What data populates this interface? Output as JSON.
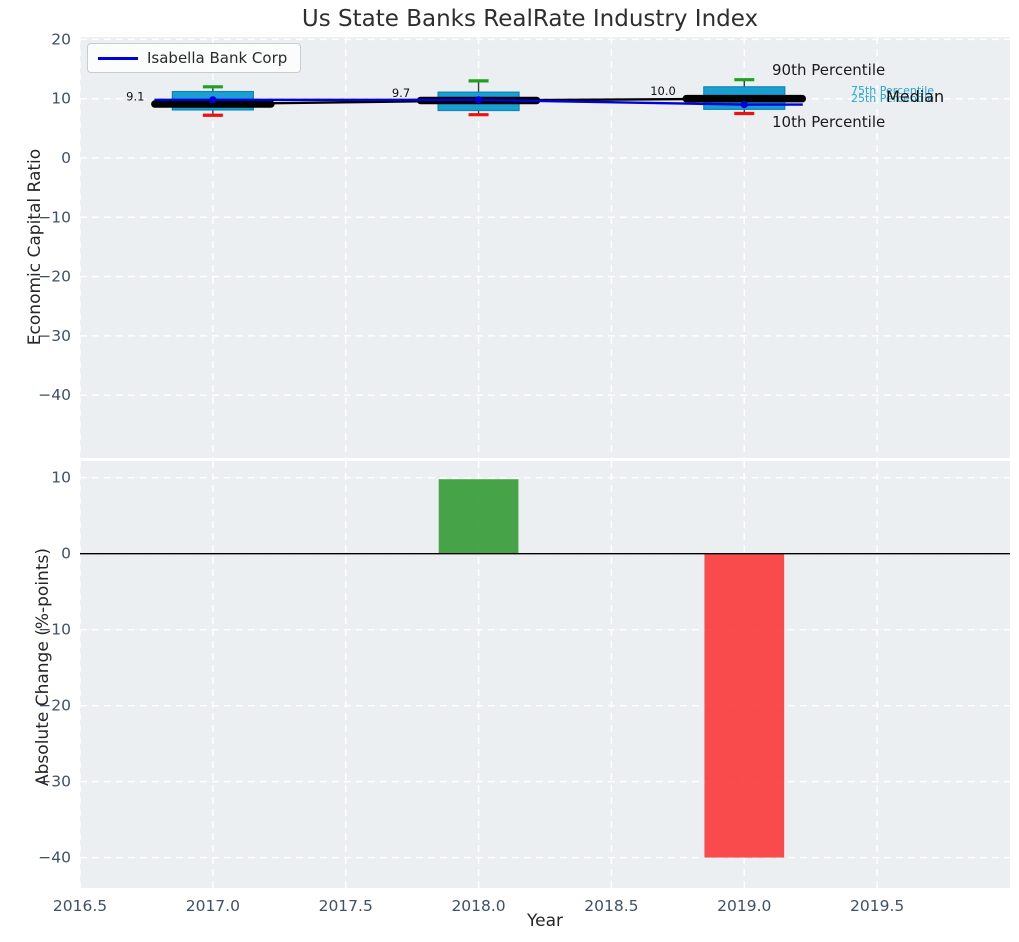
{
  "title": "Us State Banks RealRate Industry Index",
  "legend": {
    "label": "Isabella Bank Corp",
    "line_color": "#0000dd"
  },
  "annotations": {
    "p90": "90th Percentile",
    "p75": "75th Percentile",
    "median": "Median",
    "p25": "25th Percentile",
    "p10": "10th Percentile"
  },
  "colors": {
    "axes_background": "#ECEFF1",
    "grid": "#FFFFFF",
    "box_fill": "#1A9FD4",
    "box_edge": "#0D87B2",
    "whisker": "#3A3A3A",
    "cap_top": "#1FA01F",
    "cap_bottom": "#EE1111",
    "median_line": "#000000",
    "company_line": "#0000DD",
    "tick_label": "#3F5166",
    "zero_line": "#000000",
    "value_label": "#111111"
  },
  "chart_data": [
    {
      "type": "boxplot+line",
      "panel": "top",
      "ylabel": "Economic Capital Ratio",
      "xlim": [
        2016.5,
        2020.0
      ],
      "ylim": [
        -50.6,
        20.4
      ],
      "xticks": [
        2016.5,
        2017.0,
        2017.5,
        2018.0,
        2018.5,
        2019.0,
        2019.5
      ],
      "yticks": [
        20,
        10,
        0,
        -10,
        -20,
        -30,
        -40
      ],
      "ytick_labels": [
        "20",
        "10",
        "0",
        "−10",
        "−20",
        "−30",
        "−40"
      ],
      "grid": true,
      "legend_position": "upper left",
      "boxes": [
        {
          "x": 2017,
          "p10": 7.2,
          "q1": 8.1,
          "median": 9.1,
          "q3": 11.2,
          "p90": 12.0
        },
        {
          "x": 2018,
          "p10": 7.3,
          "q1": 8.0,
          "median": 9.7,
          "q3": 11.1,
          "p90": 13.0
        },
        {
          "x": 2019,
          "p10": 7.5,
          "q1": 8.2,
          "median": 10.0,
          "q3": 12.0,
          "p90": 13.2
        }
      ],
      "median_labels": [
        "9.1",
        "9.7",
        "10.0"
      ],
      "company_series": {
        "name": "Isabella Bank Corp",
        "x": [
          2017,
          2018,
          2019
        ],
        "y": [
          9.8,
          9.8,
          9.0
        ]
      }
    },
    {
      "type": "bar",
      "panel": "bottom",
      "ylabel": "Absolute Change (%-points)",
      "xlabel": "Year",
      "xlim": [
        2016.5,
        2020.0
      ],
      "ylim": [
        -44.0,
        12.2
      ],
      "xticks": [
        2016.5,
        2017.0,
        2017.5,
        2018.0,
        2018.5,
        2019.0,
        2019.5
      ],
      "xtick_labels": [
        "2016.5",
        "2017.0",
        "2017.5",
        "2018.0",
        "2018.5",
        "2019.0",
        "2019.5"
      ],
      "yticks": [
        10,
        0,
        -10,
        -20,
        -30,
        -40
      ],
      "ytick_labels": [
        "10",
        "0",
        "−10",
        "−20",
        "−30",
        "−40"
      ],
      "x": [
        2018,
        2019
      ],
      "values": [
        9.8,
        -40.0
      ],
      "bar_colors": [
        "#3A9D3B",
        "#FA3E3E"
      ],
      "bar_width": 0.3,
      "zero_line": true,
      "grid": true
    }
  ]
}
